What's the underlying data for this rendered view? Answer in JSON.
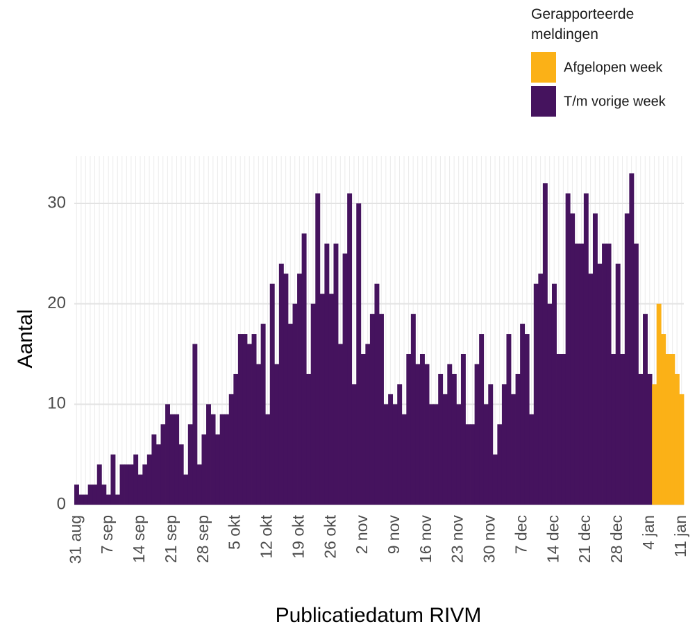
{
  "chart_data": {
    "type": "stacked_bar",
    "x_label": "Publicatiedatum RIVM",
    "y_label": "Aantal",
    "legend_title": "Gerapporteerde meldingen",
    "categories": [
      "31 aug",
      null,
      null,
      null,
      null,
      null,
      null,
      "7 sep",
      null,
      null,
      null,
      null,
      null,
      null,
      "14 sep",
      null,
      null,
      null,
      null,
      null,
      null,
      "21 sep",
      null,
      null,
      null,
      null,
      null,
      null,
      "28 sep",
      null,
      null,
      null,
      null,
      null,
      null,
      "5 okt",
      null,
      null,
      null,
      null,
      null,
      null,
      "12 okt",
      null,
      null,
      null,
      null,
      null,
      null,
      "19 okt",
      null,
      null,
      null,
      null,
      null,
      null,
      "26 okt",
      null,
      null,
      null,
      null,
      null,
      null,
      "2 nov",
      null,
      null,
      null,
      null,
      null,
      null,
      "9 nov",
      null,
      null,
      null,
      null,
      null,
      null,
      "16 nov",
      null,
      null,
      null,
      null,
      null,
      null,
      "23 nov",
      null,
      null,
      null,
      null,
      null,
      null,
      "30 nov",
      null,
      null,
      null,
      null,
      null,
      null,
      "7 dec",
      null,
      null,
      null,
      null,
      null,
      null,
      "14 dec",
      null,
      null,
      null,
      null,
      null,
      null,
      "21 dec",
      null,
      null,
      null,
      null,
      null,
      null,
      "28 dec",
      null,
      null,
      null,
      null,
      null,
      null,
      "4 jan",
      null,
      null,
      null,
      null,
      null,
      null,
      "11 jan"
    ],
    "series": [
      {
        "name": "Afgelopen week",
        "color": "#fbb117",
        "values": [
          null,
          null,
          null,
          null,
          null,
          null,
          null,
          null,
          null,
          null,
          null,
          null,
          null,
          null,
          null,
          null,
          null,
          null,
          null,
          null,
          null,
          null,
          null,
          null,
          null,
          null,
          null,
          null,
          null,
          null,
          null,
          null,
          null,
          null,
          null,
          null,
          null,
          null,
          null,
          null,
          null,
          null,
          null,
          null,
          null,
          null,
          null,
          null,
          null,
          null,
          null,
          null,
          null,
          null,
          null,
          null,
          null,
          null,
          null,
          null,
          null,
          null,
          null,
          null,
          null,
          null,
          null,
          null,
          null,
          null,
          null,
          null,
          null,
          null,
          null,
          null,
          null,
          null,
          null,
          null,
          null,
          null,
          null,
          null,
          null,
          null,
          null,
          null,
          null,
          null,
          null,
          null,
          null,
          null,
          null,
          null,
          null,
          null,
          null,
          null,
          null,
          null,
          null,
          null,
          null,
          null,
          null,
          null,
          null,
          null,
          null,
          null,
          null,
          null,
          null,
          null,
          null,
          null,
          null,
          null,
          null,
          null,
          null,
          null,
          null,
          null,
          null,
          12,
          20,
          17,
          15,
          15,
          13,
          11
        ]
      },
      {
        "name": "T/m vorige week",
        "color": "#45135e",
        "values": [
          2,
          1,
          1,
          2,
          2,
          4,
          2,
          1,
          5,
          1,
          4,
          4,
          4,
          5,
          3,
          4,
          5,
          7,
          6,
          8,
          10,
          9,
          9,
          6,
          3,
          8,
          16,
          4,
          7,
          10,
          9,
          7,
          9,
          9,
          11,
          13,
          17,
          17,
          16,
          17,
          14,
          18,
          9,
          22,
          14,
          24,
          23,
          18,
          20,
          23,
          27,
          13,
          20,
          31,
          21,
          26,
          21,
          26,
          16,
          25,
          31,
          12,
          30,
          15,
          16,
          19,
          22,
          19,
          10,
          11,
          10,
          12,
          9,
          15,
          19,
          14,
          15,
          14,
          10,
          10,
          13,
          11,
          14,
          13,
          10,
          15,
          8,
          8,
          14,
          17,
          10,
          12,
          5,
          8,
          12,
          17,
          11,
          13,
          18,
          17,
          9,
          22,
          23,
          32,
          20,
          22,
          15,
          15,
          31,
          29,
          26,
          26,
          31,
          23,
          29,
          24,
          26,
          26,
          15,
          24,
          15,
          29,
          33,
          26,
          13,
          19,
          13,
          null,
          null,
          null,
          null,
          null,
          null,
          null
        ]
      }
    ],
    "ylim": [
      0,
      34.7
    ],
    "yticks": [
      0,
      10,
      20,
      30
    ],
    "grid": true
  }
}
